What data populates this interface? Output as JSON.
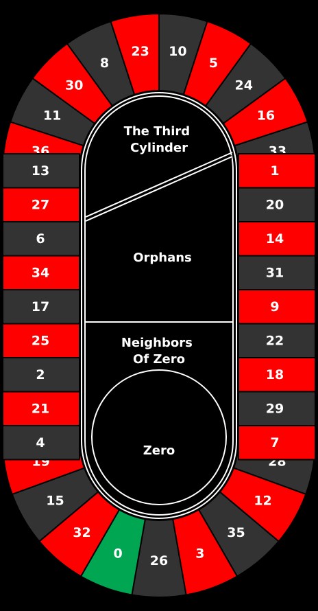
{
  "colors": {
    "red": "#fe0000",
    "black": "#333333",
    "green": "#00a651",
    "background": "#000000",
    "line": "#ffffff"
  },
  "pockets": [
    {
      "n": "8",
      "c": "black"
    },
    {
      "n": "23",
      "c": "red"
    },
    {
      "n": "10",
      "c": "black"
    },
    {
      "n": "5",
      "c": "red"
    },
    {
      "n": "30",
      "c": "red"
    },
    {
      "n": "24",
      "c": "black"
    },
    {
      "n": "11",
      "c": "black"
    },
    {
      "n": "16",
      "c": "red"
    },
    {
      "n": "36",
      "c": "red"
    },
    {
      "n": "33",
      "c": "black"
    },
    {
      "n": "13",
      "c": "black"
    },
    {
      "n": "27",
      "c": "red"
    },
    {
      "n": "6",
      "c": "black"
    },
    {
      "n": "34",
      "c": "red"
    },
    {
      "n": "17",
      "c": "black"
    },
    {
      "n": "25",
      "c": "red"
    },
    {
      "n": "2",
      "c": "black"
    },
    {
      "n": "21",
      "c": "red"
    },
    {
      "n": "4",
      "c": "black"
    },
    {
      "n": "1",
      "c": "red"
    },
    {
      "n": "20",
      "c": "black"
    },
    {
      "n": "14",
      "c": "red"
    },
    {
      "n": "31",
      "c": "black"
    },
    {
      "n": "9",
      "c": "red"
    },
    {
      "n": "22",
      "c": "black"
    },
    {
      "n": "18",
      "c": "red"
    },
    {
      "n": "29",
      "c": "black"
    },
    {
      "n": "7",
      "c": "red"
    },
    {
      "n": "19",
      "c": "red"
    },
    {
      "n": "28",
      "c": "black"
    },
    {
      "n": "15",
      "c": "black"
    },
    {
      "n": "12",
      "c": "red"
    },
    {
      "n": "32",
      "c": "red"
    },
    {
      "n": "35",
      "c": "black"
    },
    {
      "n": "0",
      "c": "green"
    },
    {
      "n": "3",
      "c": "red"
    },
    {
      "n": "26",
      "c": "black"
    }
  ],
  "sectors": {
    "third_cylinder": [
      "The Third",
      "Cylinder"
    ],
    "orphans": [
      "Orphans"
    ],
    "neighbors_of_zero": [
      "Neighbors",
      "Of Zero"
    ],
    "zero": [
      "Zero"
    ]
  }
}
